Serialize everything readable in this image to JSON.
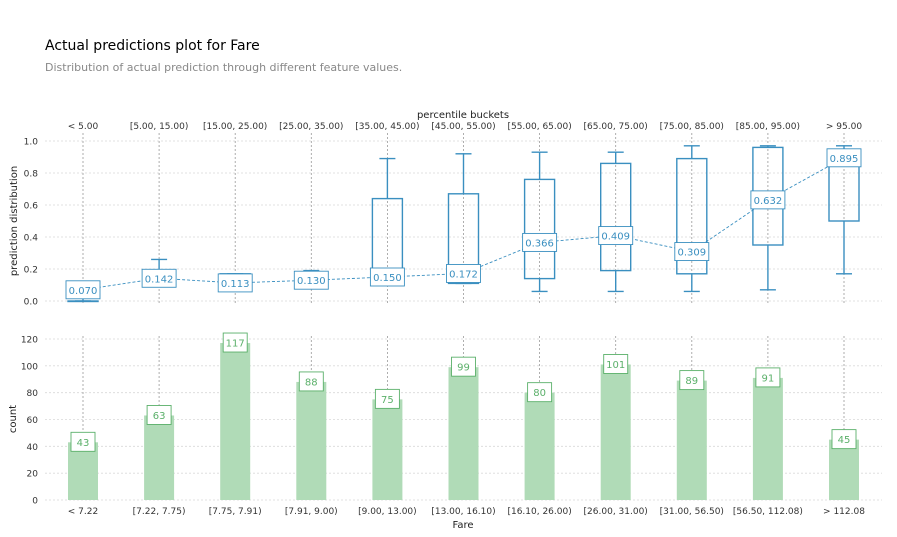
{
  "title": "Actual predictions plot for Fare",
  "subtitle": "Distribution of actual prediction through different feature values.",
  "colors": {
    "box": "#3a8fc0",
    "bar": "#b0dbb7",
    "bar_label": "#5bb06a",
    "grid": "#d9d9d9",
    "vline": "#9a9a9a"
  },
  "chart_data": [
    {
      "type": "box",
      "title": "",
      "xlabel": "percentile buckets",
      "ylabel": "prediction distribution",
      "ylim": [
        0,
        1
      ],
      "yticks": [
        "0.0",
        "0.2",
        "0.4",
        "0.6",
        "0.8",
        "1.0"
      ],
      "categories": [
        "< 5.00",
        "[5.00, 15.00)",
        "[15.00, 25.00)",
        "[25.00, 35.00)",
        "[35.00, 45.00)",
        "[45.00, 55.00)",
        "[55.00, 65.00)",
        "[65.00, 75.00)",
        "[75.00, 85.00)",
        "[85.00, 95.00)",
        "> 95.00"
      ],
      "boxes": [
        {
          "whislo": 0.0,
          "q1": 0.0,
          "q3": 0.0,
          "whishi": 0.11,
          "mean": 0.07,
          "label": "0.070"
        },
        {
          "whislo": 0.14,
          "q1": 0.14,
          "q3": 0.19,
          "whishi": 0.26,
          "mean": 0.142,
          "label": "0.142"
        },
        {
          "whislo": 0.11,
          "q1": 0.11,
          "q3": 0.17,
          "whishi": 0.17,
          "mean": 0.113,
          "label": "0.113"
        },
        {
          "whislo": 0.11,
          "q1": 0.11,
          "q3": 0.16,
          "whishi": 0.19,
          "mean": 0.13,
          "label": "0.130"
        },
        {
          "whislo": 0.11,
          "q1": 0.11,
          "q3": 0.64,
          "whishi": 0.89,
          "mean": 0.15,
          "label": "0.150"
        },
        {
          "whislo": 0.11,
          "q1": 0.11,
          "q3": 0.67,
          "whishi": 0.92,
          "mean": 0.172,
          "label": "0.172"
        },
        {
          "whislo": 0.06,
          "q1": 0.14,
          "q3": 0.76,
          "whishi": 0.93,
          "mean": 0.366,
          "label": "0.366"
        },
        {
          "whislo": 0.06,
          "q1": 0.19,
          "q3": 0.86,
          "whishi": 0.93,
          "mean": 0.409,
          "label": "0.409"
        },
        {
          "whislo": 0.06,
          "q1": 0.17,
          "q3": 0.89,
          "whishi": 0.97,
          "mean": 0.309,
          "label": "0.309"
        },
        {
          "whislo": 0.07,
          "q1": 0.35,
          "q3": 0.96,
          "whishi": 0.97,
          "mean": 0.632,
          "label": "0.632"
        },
        {
          "whislo": 0.17,
          "q1": 0.5,
          "q3": 0.94,
          "whishi": 0.97,
          "mean": 0.895,
          "label": "0.895"
        }
      ]
    },
    {
      "type": "bar",
      "title": "",
      "xlabel": "Fare",
      "ylabel": "count",
      "ylim": [
        0,
        120
      ],
      "yticks": [
        "0",
        "20",
        "40",
        "60",
        "80",
        "100",
        "120"
      ],
      "categories": [
        "< 7.22",
        "[7.22, 7.75)",
        "[7.75, 7.91)",
        "[7.91, 9.00)",
        "[9.00, 13.00)",
        "[13.00, 16.10)",
        "[16.10, 26.00)",
        "[26.00, 31.00)",
        "[31.00, 56.50)",
        "[56.50, 112.08)",
        "> 112.08"
      ],
      "values": [
        43,
        63,
        117,
        88,
        75,
        99,
        80,
        101,
        89,
        91,
        45
      ]
    }
  ]
}
